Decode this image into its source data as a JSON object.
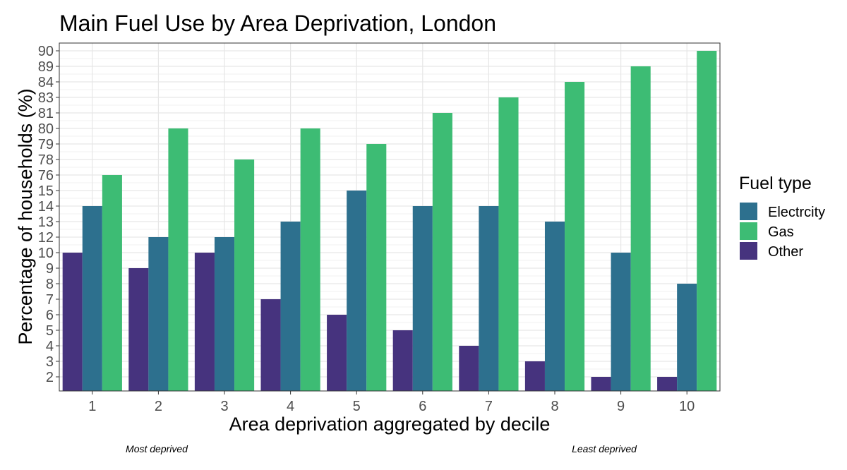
{
  "chart_data": {
    "type": "bar",
    "title": "Main Fuel Use by Area Deprivation, London",
    "xlabel": "Area deprivation aggregated by decile",
    "ylabel": "Percentage of households (%)",
    "categories": [
      "1",
      "2",
      "3",
      "4",
      "5",
      "6",
      "7",
      "8",
      "9",
      "10"
    ],
    "y_tick_labels": [
      "2",
      "3",
      "4",
      "5",
      "6",
      "7",
      "8",
      "9",
      "10",
      "12",
      "13",
      "14",
      "15",
      "76",
      "78",
      "79",
      "80",
      "81",
      "83",
      "84",
      "89",
      "90"
    ],
    "series": [
      {
        "name": "Other",
        "color": "#46337e",
        "values": [
          10,
          9,
          10,
          7,
          6,
          5,
          4,
          3,
          2,
          2
        ]
      },
      {
        "name": "Electrcity",
        "color": "#2d708e",
        "values": [
          14,
          12,
          12,
          13,
          15,
          14,
          14,
          13,
          10,
          8
        ]
      },
      {
        "name": "Gas",
        "color": "#3dbc74",
        "values": [
          76,
          80,
          78,
          80,
          79,
          81,
          83,
          84,
          89,
          90
        ]
      }
    ],
    "legend": {
      "title": "Fuel type",
      "position": "right",
      "entries": [
        "Electrcity",
        "Gas",
        "Other"
      ]
    },
    "grid": true,
    "annotations": {
      "left": "Most deprived",
      "right": "Least deprived"
    }
  }
}
